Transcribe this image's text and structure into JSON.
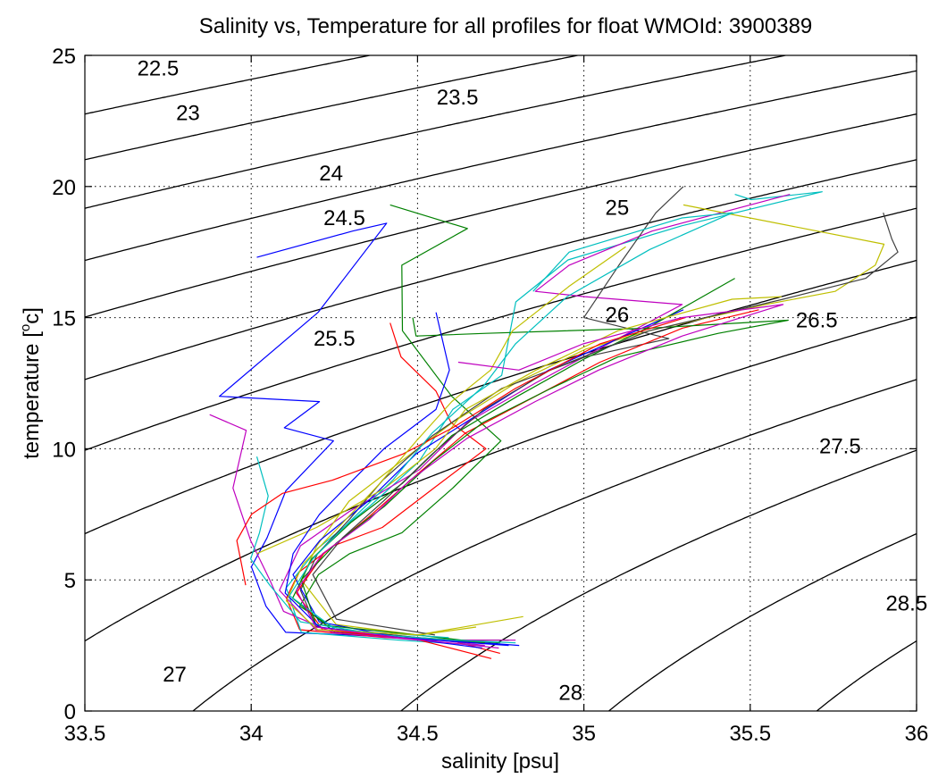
{
  "chart_data": {
    "type": "line",
    "title": "Salinity vs, Temperature for all profiles for float WMOId: 3900389",
    "xlabel": "salinity [psu]",
    "ylabel_parts": [
      "temperature [",
      "o",
      "c]"
    ],
    "xlim": [
      33.5,
      36
    ],
    "ylim": [
      0,
      25
    ],
    "xticks": [
      33.5,
      34,
      34.5,
      35,
      35.5,
      36
    ],
    "xtick_labels": [
      "33.5",
      "34",
      "34.5",
      "35",
      "35.5",
      "36"
    ],
    "yticks": [
      0,
      5,
      10,
      15,
      20,
      25
    ],
    "ytick_labels": [
      "0",
      "5",
      "10",
      "15",
      "20",
      "25"
    ],
    "grid": true,
    "density_contours": {
      "levels": [
        22.5,
        23,
        23.5,
        24,
        24.5,
        25,
        25.5,
        26,
        26.5,
        27,
        27.5,
        28,
        28.5
      ],
      "labels": [
        {
          "text": "22.5",
          "s": 33.72,
          "t": 24.5
        },
        {
          "text": "23",
          "s": 33.81,
          "t": 22.8
        },
        {
          "text": "23.5",
          "s": 34.62,
          "t": 23.4
        },
        {
          "text": "24",
          "s": 34.24,
          "t": 20.5
        },
        {
          "text": "24.5",
          "s": 34.28,
          "t": 18.8
        },
        {
          "text": "25",
          "s": 35.1,
          "t": 19.2
        },
        {
          "text": "25.5",
          "s": 34.25,
          "t": 14.2
        },
        {
          "text": "26",
          "s": 35.1,
          "t": 15.1
        },
        {
          "text": "26.5",
          "s": 35.7,
          "t": 14.9
        },
        {
          "text": "27",
          "s": 33.77,
          "t": 1.4
        },
        {
          "text": "27.5",
          "s": 35.77,
          "t": 10.1
        },
        {
          "text": "28",
          "s": 34.96,
          "t": 0.7
        },
        {
          "text": "28.5",
          "s": 35.97,
          "t": 4.1
        }
      ]
    },
    "series_colors": [
      "#0000ff",
      "#008000",
      "#ff0000",
      "#00bfbf",
      "#bf00bf",
      "#bfbf00",
      "#404040"
    ],
    "series": [
      {
        "color": "#0000ff",
        "points": [
          [
            34.02,
            17.3
          ],
          [
            34.3,
            18.3
          ],
          [
            34.41,
            18.6
          ],
          [
            34.2,
            15.2
          ],
          [
            33.9,
            12.0
          ],
          [
            34.2,
            11.8
          ],
          [
            34.1,
            10.8
          ],
          [
            34.25,
            10.3
          ],
          [
            34.1,
            8.4
          ],
          [
            34.05,
            6.6
          ],
          [
            34.0,
            5.5
          ],
          [
            34.05,
            4.0
          ],
          [
            34.1,
            3.0
          ],
          [
            34.3,
            2.9
          ],
          [
            34.6,
            2.7
          ],
          [
            34.8,
            2.5
          ]
        ]
      },
      {
        "color": "#008000",
        "points": [
          [
            34.42,
            19.3
          ],
          [
            34.65,
            18.4
          ],
          [
            34.45,
            17.0
          ],
          [
            34.45,
            14.5
          ],
          [
            34.6,
            12.0
          ],
          [
            34.75,
            10.3
          ],
          [
            34.6,
            8.5
          ],
          [
            34.45,
            6.8
          ],
          [
            34.3,
            6.0
          ],
          [
            34.2,
            5.2
          ],
          [
            34.15,
            4.0
          ],
          [
            34.25,
            3.1
          ],
          [
            34.5,
            2.8
          ],
          [
            34.75,
            2.6
          ]
        ]
      },
      {
        "color": "#ff0000",
        "points": [
          [
            34.42,
            14.8
          ],
          [
            34.45,
            13.5
          ],
          [
            34.55,
            12.2
          ],
          [
            34.6,
            11.0
          ],
          [
            34.7,
            10.0
          ],
          [
            34.55,
            8.5
          ],
          [
            34.4,
            7.0
          ],
          [
            34.25,
            6.3
          ],
          [
            34.15,
            5.3
          ],
          [
            34.1,
            4.3
          ],
          [
            34.15,
            3.1
          ],
          [
            34.4,
            2.8
          ],
          [
            34.6,
            2.7
          ],
          [
            34.75,
            2.2
          ]
        ]
      },
      {
        "color": "#00bfbf",
        "points": [
          [
            35.45,
            19.7
          ],
          [
            35.5,
            19.5
          ],
          [
            35.72,
            19.8
          ],
          [
            35.3,
            18.5
          ],
          [
            34.95,
            17.2
          ],
          [
            34.8,
            15.6
          ],
          [
            34.75,
            12.8
          ],
          [
            34.6,
            11.5
          ],
          [
            34.5,
            9.5
          ],
          [
            34.35,
            7.8
          ],
          [
            34.2,
            6.2
          ],
          [
            34.1,
            4.7
          ],
          [
            34.15,
            3.0
          ],
          [
            34.45,
            2.7
          ],
          [
            34.7,
            2.5
          ]
        ]
      },
      {
        "color": "#bf00bf",
        "points": [
          [
            35.62,
            19.7
          ],
          [
            35.2,
            18.3
          ],
          [
            34.95,
            17.0
          ],
          [
            34.85,
            16.0
          ],
          [
            35.0,
            15.8
          ],
          [
            35.3,
            15.5
          ],
          [
            35.1,
            14.2
          ],
          [
            34.85,
            12.5
          ],
          [
            34.65,
            11.0
          ],
          [
            34.5,
            9.2
          ],
          [
            34.3,
            7.6
          ],
          [
            34.15,
            6.3
          ],
          [
            34.08,
            4.6
          ],
          [
            34.2,
            3.1
          ],
          [
            34.5,
            2.8
          ],
          [
            34.7,
            2.5
          ]
        ]
      },
      {
        "color": "#bfbf00",
        "points": [
          [
            35.3,
            19.3
          ],
          [
            35.9,
            17.8
          ],
          [
            35.88,
            17.0
          ],
          [
            35.75,
            16.0
          ],
          [
            35.55,
            15.5
          ],
          [
            35.2,
            14.5
          ],
          [
            35.0,
            13.8
          ],
          [
            34.8,
            12.5
          ],
          [
            34.6,
            11.0
          ],
          [
            34.45,
            9.5
          ],
          [
            34.3,
            8.0
          ],
          [
            34.2,
            6.3
          ],
          [
            34.15,
            5.0
          ],
          [
            34.25,
            3.3
          ],
          [
            34.5,
            2.9
          ],
          [
            34.82,
            3.6
          ]
        ]
      },
      {
        "color": "#404040",
        "points": [
          [
            35.3,
            20.0
          ],
          [
            35.22,
            19.0
          ],
          [
            35.1,
            17.0
          ],
          [
            35.0,
            15.0
          ],
          [
            35.25,
            14.2
          ],
          [
            35.0,
            13.5
          ],
          [
            34.75,
            12.3
          ],
          [
            34.55,
            10.5
          ],
          [
            34.4,
            8.8
          ],
          [
            34.3,
            7.3
          ],
          [
            34.2,
            6.0
          ],
          [
            34.15,
            4.6
          ],
          [
            34.2,
            3.2
          ],
          [
            34.5,
            2.8
          ],
          [
            34.7,
            2.6
          ]
        ]
      },
      {
        "color": "#0000ff",
        "points": [
          [
            35.3,
            15.3
          ],
          [
            35.1,
            14.2
          ],
          [
            34.9,
            13.0
          ],
          [
            34.7,
            11.5
          ],
          [
            34.5,
            9.8
          ],
          [
            34.35,
            8.0
          ],
          [
            34.2,
            6.5
          ],
          [
            34.12,
            5.2
          ],
          [
            34.2,
            3.4
          ],
          [
            34.45,
            2.8
          ],
          [
            34.7,
            2.4
          ]
        ]
      },
      {
        "color": "#008000",
        "points": [
          [
            35.45,
            16.5
          ],
          [
            35.2,
            14.7
          ],
          [
            35.0,
            13.4
          ],
          [
            34.8,
            12.0
          ],
          [
            34.6,
            10.5
          ],
          [
            34.45,
            8.7
          ],
          [
            34.3,
            7.2
          ],
          [
            34.18,
            5.8
          ],
          [
            34.12,
            4.3
          ],
          [
            34.25,
            3.0
          ],
          [
            34.55,
            2.7
          ],
          [
            34.78,
            2.7
          ]
        ]
      },
      {
        "color": "#ff0000",
        "points": [
          [
            35.52,
            15.3
          ],
          [
            35.3,
            14.6
          ],
          [
            35.05,
            13.3
          ],
          [
            34.85,
            12.0
          ],
          [
            34.65,
            10.6
          ],
          [
            34.5,
            9.0
          ],
          [
            34.35,
            7.4
          ],
          [
            34.22,
            6.0
          ],
          [
            34.14,
            4.5
          ],
          [
            34.22,
            3.1
          ],
          [
            34.5,
            2.7
          ],
          [
            34.72,
            2.0
          ]
        ]
      },
      {
        "color": "#bf00bf",
        "points": [
          [
            33.88,
            11.3
          ],
          [
            33.98,
            10.7
          ],
          [
            33.95,
            8.5
          ],
          [
            34.0,
            6.5
          ],
          [
            34.05,
            5.0
          ],
          [
            34.1,
            3.8
          ],
          [
            34.25,
            3.0
          ],
          [
            34.5,
            2.7
          ],
          [
            34.8,
            2.7
          ]
        ]
      },
      {
        "color": "#008000",
        "points": [
          [
            34.48,
            15.0
          ],
          [
            34.5,
            14.3
          ],
          [
            34.7,
            14.4
          ],
          [
            35.2,
            14.6
          ],
          [
            35.62,
            14.9
          ],
          [
            35.4,
            14.4
          ],
          [
            35.1,
            13.5
          ],
          [
            34.9,
            12.3
          ],
          [
            34.7,
            11.0
          ],
          [
            34.55,
            9.5
          ],
          [
            34.4,
            7.8
          ],
          [
            34.25,
            6.4
          ],
          [
            34.15,
            5.0
          ],
          [
            34.2,
            3.3
          ],
          [
            34.5,
            2.9
          ],
          [
            34.7,
            2.6
          ]
        ]
      },
      {
        "color": "#00bfbf",
        "points": [
          [
            34.02,
            9.7
          ],
          [
            34.05,
            8.2
          ],
          [
            34.03,
            6.8
          ],
          [
            34.0,
            5.8
          ],
          [
            34.05,
            4.8
          ],
          [
            34.15,
            3.4
          ],
          [
            34.4,
            2.9
          ],
          [
            34.6,
            2.7
          ],
          [
            34.8,
            2.6
          ]
        ]
      },
      {
        "color": "#bfbf00",
        "points": [
          [
            34.02,
            6.0
          ],
          [
            34.2,
            7.0
          ],
          [
            34.4,
            8.5
          ],
          [
            34.55,
            10.0
          ],
          [
            34.65,
            11.5
          ],
          [
            34.85,
            13.0
          ],
          [
            35.1,
            14.5
          ],
          [
            35.45,
            15.7
          ],
          [
            35.6,
            15.8
          ]
        ]
      },
      {
        "color": "#404040",
        "points": [
          [
            35.9,
            19.0
          ],
          [
            35.92,
            18.0
          ],
          [
            35.95,
            17.5
          ],
          [
            35.85,
            16.5
          ],
          [
            35.6,
            15.7
          ],
          [
            35.2,
            14.5
          ],
          [
            34.9,
            13.0
          ],
          [
            34.7,
            11.5
          ],
          [
            34.55,
            9.8
          ],
          [
            34.4,
            8.0
          ],
          [
            34.27,
            6.6
          ],
          [
            34.18,
            5.2
          ],
          [
            34.25,
            3.5
          ],
          [
            34.55,
            2.9
          ]
        ]
      },
      {
        "color": "#0000ff",
        "points": [
          [
            34.55,
            15.2
          ],
          [
            34.6,
            13.0
          ],
          [
            34.55,
            11.5
          ],
          [
            34.4,
            10.0
          ],
          [
            34.3,
            8.8
          ],
          [
            34.2,
            7.5
          ],
          [
            34.12,
            6.0
          ],
          [
            34.1,
            4.5
          ],
          [
            34.2,
            3.2
          ],
          [
            34.45,
            2.8
          ],
          [
            34.78,
            2.5
          ]
        ]
      },
      {
        "color": "#ff0000",
        "points": [
          [
            33.98,
            4.8
          ],
          [
            33.96,
            6.5
          ],
          [
            34.0,
            7.5
          ],
          [
            34.1,
            8.3
          ],
          [
            34.25,
            8.8
          ],
          [
            34.45,
            9.8
          ],
          [
            34.6,
            10.8
          ],
          [
            34.8,
            12.3
          ],
          [
            35.05,
            14.0
          ],
          [
            35.3,
            15.0
          ]
        ]
      },
      {
        "color": "#00bfbf",
        "points": [
          [
            34.85,
            16.0
          ],
          [
            34.95,
            17.5
          ],
          [
            35.3,
            18.8
          ],
          [
            35.45,
            19.0
          ],
          [
            35.2,
            17.6
          ],
          [
            34.95,
            15.8
          ],
          [
            34.8,
            14.0
          ],
          [
            34.7,
            12.4
          ],
          [
            34.55,
            10.6
          ],
          [
            34.42,
            8.8
          ],
          [
            34.3,
            7.2
          ],
          [
            34.18,
            5.8
          ],
          [
            34.12,
            4.4
          ],
          [
            34.25,
            3.1
          ],
          [
            34.6,
            2.8
          ]
        ]
      },
      {
        "color": "#bfbf00",
        "points": [
          [
            35.12,
            17.7
          ],
          [
            34.95,
            16.2
          ],
          [
            34.78,
            14.5
          ],
          [
            34.72,
            13.0
          ],
          [
            34.6,
            11.8
          ],
          [
            34.5,
            10.3
          ],
          [
            34.38,
            8.6
          ],
          [
            34.26,
            7.0
          ],
          [
            34.16,
            5.6
          ],
          [
            34.1,
            4.2
          ],
          [
            34.2,
            3.1
          ],
          [
            34.5,
            2.9
          ],
          [
            34.68,
            3.2
          ]
        ]
      },
      {
        "color": "#bf00bf",
        "points": [
          [
            34.62,
            13.3
          ],
          [
            34.8,
            13.0
          ],
          [
            35.0,
            14.0
          ],
          [
            35.3,
            15.0
          ],
          [
            35.6,
            15.5
          ],
          [
            35.3,
            14.3
          ],
          [
            35.05,
            13.0
          ],
          [
            34.85,
            11.8
          ],
          [
            34.65,
            10.4
          ],
          [
            34.48,
            8.8
          ],
          [
            34.35,
            7.3
          ],
          [
            34.22,
            6.0
          ],
          [
            34.14,
            4.6
          ],
          [
            34.2,
            3.2
          ],
          [
            34.45,
            2.8
          ],
          [
            34.75,
            2.4
          ]
        ]
      }
    ]
  }
}
